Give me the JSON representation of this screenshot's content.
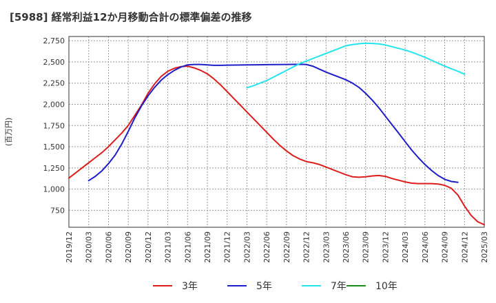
{
  "chart_data": {
    "type": "line",
    "title": "[5988]  経常利益12か月移動合計の標準偏差の推移",
    "ylabel": "(百万円)",
    "ylim": [
      550,
      2800
    ],
    "yticks": [
      "750",
      "1,000",
      "1,250",
      "1,500",
      "1,750",
      "2,000",
      "2,250",
      "2,500",
      "2,750"
    ],
    "ytick_values": [
      750,
      1000,
      1250,
      1500,
      1750,
      2000,
      2250,
      2500,
      2750
    ],
    "xticks": [
      "2019/12",
      "2020/03",
      "2020/06",
      "2020/09",
      "2020/12",
      "2021/03",
      "2021/06",
      "2021/09",
      "2021/12",
      "2022/03",
      "2022/06",
      "2022/09",
      "2022/12",
      "2023/03",
      "2023/06",
      "2023/09",
      "2023/12",
      "2024/03",
      "2024/06",
      "2024/09",
      "2024/12",
      "2025/03"
    ],
    "x_range": [
      "2019/12",
      "2025/03"
    ],
    "grid": true,
    "legend_position": "bottom",
    "series": [
      {
        "name": "3年",
        "color": "#dd1c1c",
        "points": [
          [
            "2019/12",
            1130
          ],
          [
            "2020/01",
            1190
          ],
          [
            "2020/02",
            1250
          ],
          [
            "2020/03",
            1310
          ],
          [
            "2020/04",
            1370
          ],
          [
            "2020/05",
            1430
          ],
          [
            "2020/06",
            1500
          ],
          [
            "2020/07",
            1580
          ],
          [
            "2020/08",
            1660
          ],
          [
            "2020/09",
            1750
          ],
          [
            "2020/10",
            1870
          ],
          [
            "2020/11",
            1990
          ],
          [
            "2020/12",
            2130
          ],
          [
            "2021/01",
            2240
          ],
          [
            "2021/02",
            2330
          ],
          [
            "2021/03",
            2390
          ],
          [
            "2021/04",
            2425
          ],
          [
            "2021/05",
            2445
          ],
          [
            "2021/06",
            2450
          ],
          [
            "2021/07",
            2430
          ],
          [
            "2021/08",
            2400
          ],
          [
            "2021/09",
            2360
          ],
          [
            "2021/10",
            2300
          ],
          [
            "2021/11",
            2230
          ],
          [
            "2021/12",
            2150
          ],
          [
            "2022/01",
            2070
          ],
          [
            "2022/02",
            1990
          ],
          [
            "2022/03",
            1910
          ],
          [
            "2022/04",
            1830
          ],
          [
            "2022/05",
            1750
          ],
          [
            "2022/06",
            1670
          ],
          [
            "2022/07",
            1590
          ],
          [
            "2022/08",
            1515
          ],
          [
            "2022/09",
            1450
          ],
          [
            "2022/10",
            1395
          ],
          [
            "2022/11",
            1355
          ],
          [
            "2022/12",
            1325
          ],
          [
            "2023/01",
            1310
          ],
          [
            "2023/02",
            1290
          ],
          [
            "2023/03",
            1260
          ],
          [
            "2023/04",
            1230
          ],
          [
            "2023/05",
            1200
          ],
          [
            "2023/06",
            1170
          ],
          [
            "2023/07",
            1145
          ],
          [
            "2023/08",
            1140
          ],
          [
            "2023/09",
            1145
          ],
          [
            "2023/10",
            1155
          ],
          [
            "2023/11",
            1160
          ],
          [
            "2023/12",
            1150
          ],
          [
            "2024/01",
            1125
          ],
          [
            "2024/02",
            1105
          ],
          [
            "2024/03",
            1085
          ],
          [
            "2024/04",
            1070
          ],
          [
            "2024/05",
            1065
          ],
          [
            "2024/06",
            1065
          ],
          [
            "2024/07",
            1065
          ],
          [
            "2024/08",
            1060
          ],
          [
            "2024/09",
            1045
          ],
          [
            "2024/10",
            1010
          ],
          [
            "2024/11",
            930
          ],
          [
            "2024/12",
            800
          ],
          [
            "2025/01",
            690
          ],
          [
            "2025/02",
            615
          ],
          [
            "2025/03",
            580
          ]
        ]
      },
      {
        "name": "5年",
        "color": "#1c1cc8",
        "points": [
          [
            "2020/03",
            1100
          ],
          [
            "2020/04",
            1150
          ],
          [
            "2020/05",
            1215
          ],
          [
            "2020/06",
            1300
          ],
          [
            "2020/07",
            1400
          ],
          [
            "2020/08",
            1530
          ],
          [
            "2020/09",
            1680
          ],
          [
            "2020/10",
            1840
          ],
          [
            "2020/11",
            1980
          ],
          [
            "2020/12",
            2100
          ],
          [
            "2021/01",
            2200
          ],
          [
            "2021/02",
            2285
          ],
          [
            "2021/03",
            2350
          ],
          [
            "2021/04",
            2400
          ],
          [
            "2021/05",
            2440
          ],
          [
            "2021/06",
            2465
          ],
          [
            "2021/07",
            2470
          ],
          [
            "2021/08",
            2470
          ],
          [
            "2021/09",
            2465
          ],
          [
            "2021/10",
            2460
          ],
          [
            "2021/11",
            2460
          ],
          [
            "2021/12",
            2462
          ],
          [
            "2022/03",
            2465
          ],
          [
            "2022/06",
            2468
          ],
          [
            "2022/09",
            2470
          ],
          [
            "2022/11",
            2472
          ],
          [
            "2022/12",
            2470
          ],
          [
            "2023/01",
            2450
          ],
          [
            "2023/02",
            2415
          ],
          [
            "2023/03",
            2380
          ],
          [
            "2023/04",
            2350
          ],
          [
            "2023/05",
            2320
          ],
          [
            "2023/06",
            2290
          ],
          [
            "2023/07",
            2250
          ],
          [
            "2023/08",
            2200
          ],
          [
            "2023/09",
            2130
          ],
          [
            "2023/10",
            2050
          ],
          [
            "2023/11",
            1960
          ],
          [
            "2023/12",
            1860
          ],
          [
            "2024/01",
            1760
          ],
          [
            "2024/02",
            1660
          ],
          [
            "2024/03",
            1560
          ],
          [
            "2024/04",
            1460
          ],
          [
            "2024/05",
            1370
          ],
          [
            "2024/06",
            1290
          ],
          [
            "2024/07",
            1220
          ],
          [
            "2024/08",
            1160
          ],
          [
            "2024/09",
            1115
          ],
          [
            "2024/10",
            1090
          ],
          [
            "2024/11",
            1080
          ]
        ]
      },
      {
        "name": "7年",
        "color": "#22e4ec",
        "points": [
          [
            "2022/03",
            2195
          ],
          [
            "2022/04",
            2220
          ],
          [
            "2022/05",
            2250
          ],
          [
            "2022/06",
            2280
          ],
          [
            "2022/07",
            2320
          ],
          [
            "2022/08",
            2360
          ],
          [
            "2022/09",
            2400
          ],
          [
            "2022/10",
            2440
          ],
          [
            "2022/11",
            2480
          ],
          [
            "2022/12",
            2510
          ],
          [
            "2023/01",
            2540
          ],
          [
            "2023/02",
            2570
          ],
          [
            "2023/03",
            2600
          ],
          [
            "2023/04",
            2630
          ],
          [
            "2023/05",
            2660
          ],
          [
            "2023/06",
            2690
          ],
          [
            "2023/07",
            2705
          ],
          [
            "2023/08",
            2715
          ],
          [
            "2023/09",
            2720
          ],
          [
            "2023/10",
            2718
          ],
          [
            "2023/11",
            2712
          ],
          [
            "2023/12",
            2700
          ],
          [
            "2024/01",
            2680
          ],
          [
            "2024/02",
            2660
          ],
          [
            "2024/03",
            2640
          ],
          [
            "2024/04",
            2615
          ],
          [
            "2024/05",
            2585
          ],
          [
            "2024/06",
            2555
          ],
          [
            "2024/07",
            2520
          ],
          [
            "2024/08",
            2485
          ],
          [
            "2024/09",
            2450
          ],
          [
            "2024/10",
            2420
          ],
          [
            "2024/11",
            2390
          ],
          [
            "2024/12",
            2355
          ]
        ]
      },
      {
        "name": "10年",
        "color": "#1a8c1a",
        "points": []
      }
    ]
  }
}
